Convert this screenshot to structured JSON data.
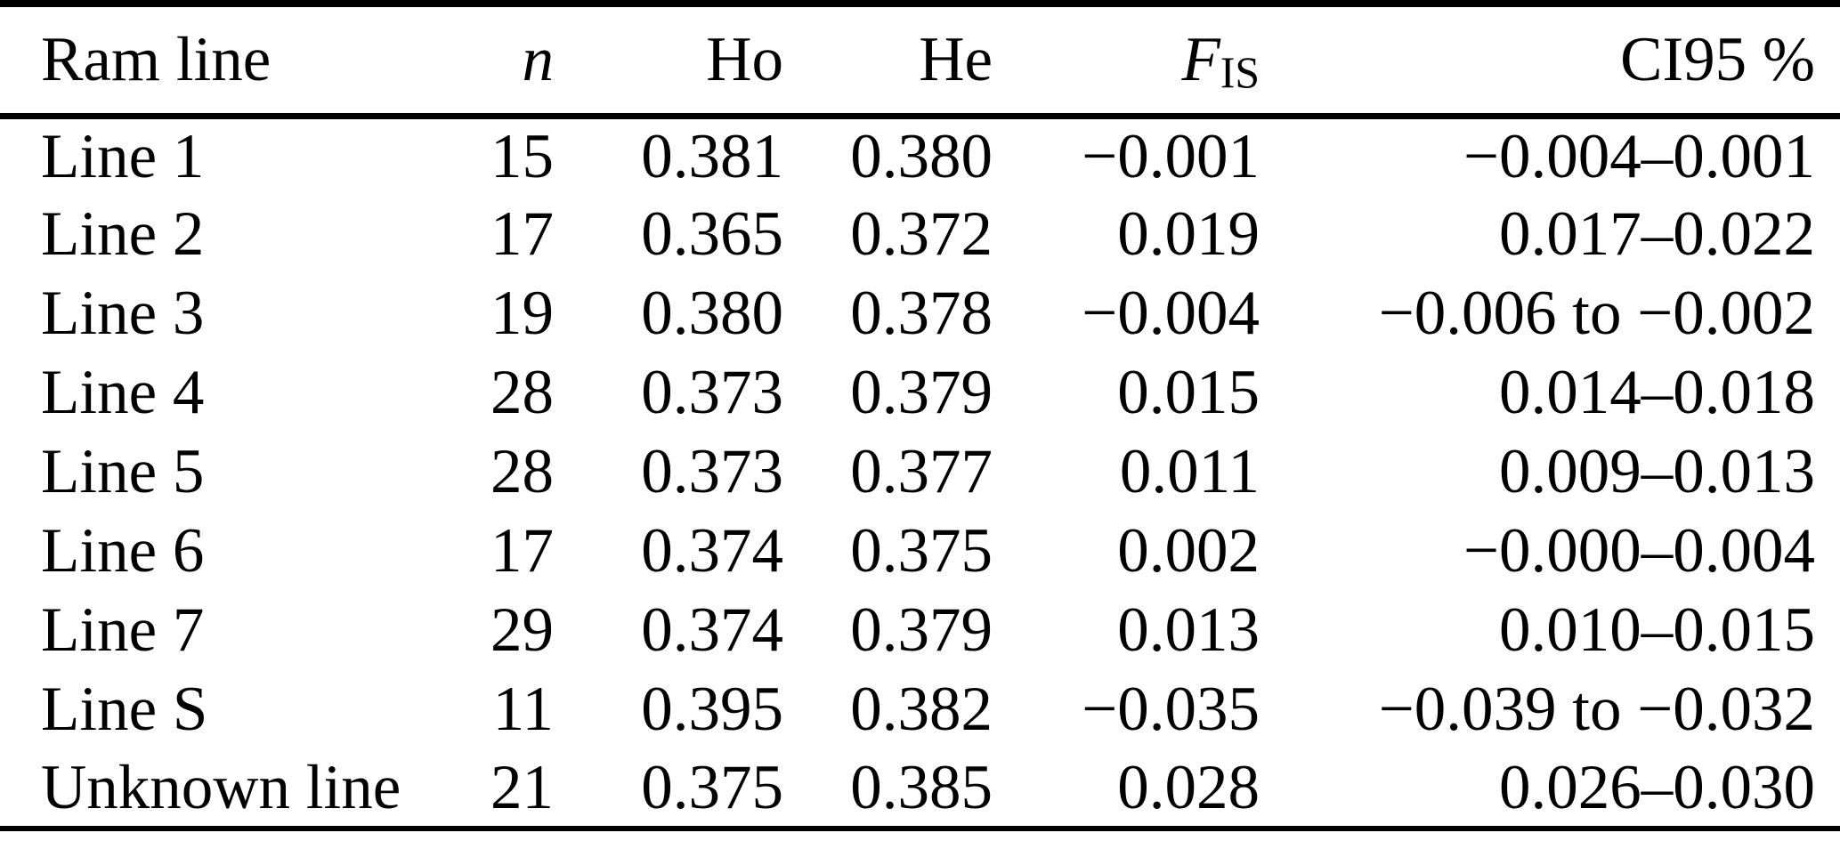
{
  "page": {
    "background_color": "#ffffff",
    "text_color": "#000000",
    "rule_color": "#000000"
  },
  "table": {
    "header": {
      "ram_line": "Ram line",
      "n": "n",
      "ho": "Ho",
      "he": "He",
      "fis_base": "F",
      "fis_sub": "IS",
      "ci95": "CI95 %"
    },
    "rows": [
      {
        "ram_line": "Line 1",
        "n": "15",
        "ho": "0.381",
        "he": "0.380",
        "fis": "−0.001",
        "ci95": "−0.004–0.001"
      },
      {
        "ram_line": "Line 2",
        "n": "17",
        "ho": "0.365",
        "he": "0.372",
        "fis": "0.019",
        "ci95": "0.017–0.022"
      },
      {
        "ram_line": "Line 3",
        "n": "19",
        "ho": "0.380",
        "he": "0.378",
        "fis": "−0.004",
        "ci95": "−0.006 to −0.002"
      },
      {
        "ram_line": "Line 4",
        "n": "28",
        "ho": "0.373",
        "he": "0.379",
        "fis": "0.015",
        "ci95": "0.014–0.018"
      },
      {
        "ram_line": "Line 5",
        "n": "28",
        "ho": "0.373",
        "he": "0.377",
        "fis": "0.011",
        "ci95": "0.009–0.013"
      },
      {
        "ram_line": "Line 6",
        "n": "17",
        "ho": "0.374",
        "he": "0.375",
        "fis": "0.002",
        "ci95": "−0.000–0.004"
      },
      {
        "ram_line": "Line 7",
        "n": "29",
        "ho": "0.374",
        "he": "0.379",
        "fis": "0.013",
        "ci95": "0.010–0.015"
      },
      {
        "ram_line": "Line S",
        "n": "11",
        "ho": "0.395",
        "he": "0.382",
        "fis": "−0.035",
        "ci95": "−0.039 to −0.032"
      },
      {
        "ram_line": "Unknown line",
        "n": "21",
        "ho": "0.375",
        "he": "0.385",
        "fis": "0.028",
        "ci95": "0.026–0.030"
      }
    ]
  }
}
